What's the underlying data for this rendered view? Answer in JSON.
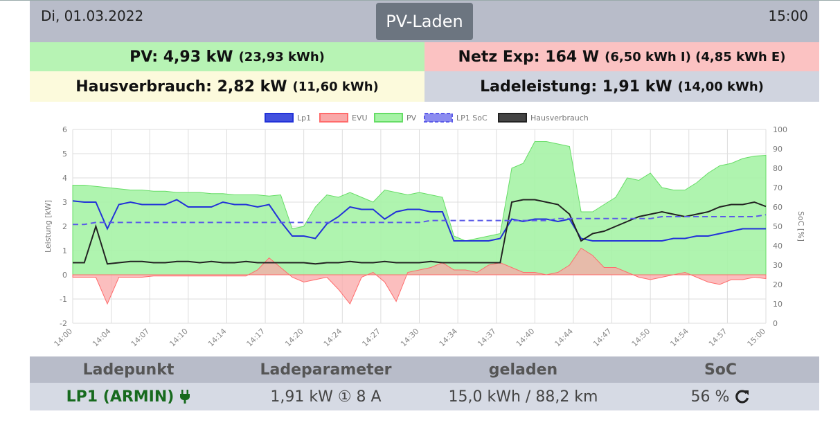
{
  "header": {
    "date": "Di, 01.03.2022",
    "mode_button": "PV-Laden",
    "time": "15:00"
  },
  "summary": {
    "pv": {
      "label": "PV: 4,93 kW",
      "detail": "(23,93 kWh)"
    },
    "netz": {
      "label": "Netz Exp: 164 W",
      "detail": "(6,50 kWh I) (4,85 kWh E)"
    },
    "haus": {
      "label": "Hausverbrauch: 2,82 kW",
      "detail": "(11,60 kWh)"
    },
    "lade": {
      "label": "Ladeleistung: 1,91 kW",
      "detail": "(14,00 kWh)"
    }
  },
  "colors": {
    "lp1": "#2232d8",
    "evu": "#ff6b6b",
    "evu_fill": "#f9a8a8",
    "pv": "#66dd66",
    "pv_fill": "#a6f3a6",
    "soc": "#5a5ae8",
    "haus": "#222222",
    "header_bg": "#b8bcc9",
    "lp_name": "#176a1e"
  },
  "chart_data": {
    "type": "area",
    "title": "",
    "xlabel": "",
    "ylabel": "Leistung [kW]",
    "y2label": "SoC [%]",
    "ylim": [
      -2,
      6
    ],
    "y2lim": [
      0,
      100
    ],
    "yticks": [
      -2,
      -1,
      0,
      1,
      2,
      3,
      4,
      5,
      6
    ],
    "y2ticks": [
      0,
      10,
      20,
      30,
      40,
      50,
      60,
      70,
      80,
      90,
      100
    ],
    "grid": true,
    "legend_position": "top",
    "x_tick_labels": [
      "14:00",
      "14:04",
      "14:07",
      "14:10",
      "14:14",
      "14:17",
      "14:20",
      "14:24",
      "14:27",
      "14:30",
      "14:34",
      "14:37",
      "14:40",
      "14:44",
      "14:47",
      "14:50",
      "14:54",
      "14:57",
      "15:00"
    ],
    "x": [
      "14:00",
      "14:01",
      "14:02",
      "14:03",
      "14:04",
      "14:05",
      "14:06",
      "14:07",
      "14:08",
      "14:09",
      "14:10",
      "14:11",
      "14:12",
      "14:13",
      "14:14",
      "14:15",
      "14:16",
      "14:17",
      "14:18",
      "14:19",
      "14:20",
      "14:21",
      "14:22",
      "14:23",
      "14:24",
      "14:25",
      "14:26",
      "14:27",
      "14:28",
      "14:29",
      "14:30",
      "14:31",
      "14:32",
      "14:33",
      "14:34",
      "14:35",
      "14:36",
      "14:37",
      "14:38",
      "14:39",
      "14:40",
      "14:41",
      "14:42",
      "14:43",
      "14:44",
      "14:45",
      "14:46",
      "14:47",
      "14:48",
      "14:49",
      "14:50",
      "14:51",
      "14:52",
      "14:53",
      "14:54",
      "14:55",
      "14:56",
      "14:57",
      "14:58",
      "14:59",
      "15:00"
    ],
    "series": [
      {
        "name": "Lp1",
        "axis": "left",
        "style": "line",
        "values": [
          3.05,
          3.0,
          3.0,
          1.9,
          2.9,
          3.0,
          2.9,
          2.9,
          2.9,
          3.1,
          2.8,
          2.8,
          2.8,
          3.0,
          2.9,
          2.9,
          2.8,
          2.9,
          2.2,
          1.6,
          1.6,
          1.5,
          2.1,
          2.4,
          2.8,
          2.7,
          2.7,
          2.3,
          2.6,
          2.7,
          2.7,
          2.6,
          2.6,
          1.4,
          1.4,
          1.4,
          1.4,
          1.5,
          2.3,
          2.2,
          2.3,
          2.3,
          2.2,
          2.3,
          1.5,
          1.4,
          1.4,
          1.4,
          1.4,
          1.4,
          1.4,
          1.4,
          1.5,
          1.5,
          1.6,
          1.6,
          1.7,
          1.8,
          1.9,
          1.9,
          1.9
        ]
      },
      {
        "name": "EVU",
        "axis": "left",
        "style": "area",
        "values": [
          -0.1,
          -0.1,
          -0.1,
          -1.2,
          -0.1,
          -0.1,
          -0.1,
          -0.05,
          -0.05,
          -0.05,
          -0.05,
          -0.05,
          -0.05,
          -0.05,
          -0.05,
          -0.05,
          0.2,
          0.7,
          0.3,
          -0.1,
          -0.3,
          -0.2,
          -0.1,
          -0.6,
          -1.2,
          -0.1,
          0.1,
          -0.3,
          -1.1,
          0.1,
          0.2,
          0.3,
          0.5,
          0.2,
          0.2,
          0.1,
          0.4,
          0.5,
          0.3,
          0.1,
          0.1,
          0.0,
          0.1,
          0.4,
          1.1,
          0.8,
          0.3,
          0.3,
          0.1,
          -0.1,
          -0.2,
          -0.1,
          0.0,
          0.1,
          -0.1,
          -0.3,
          -0.4,
          -0.2,
          -0.2,
          -0.1,
          -0.16
        ]
      },
      {
        "name": "PV",
        "axis": "left",
        "style": "area",
        "values": [
          3.7,
          3.7,
          3.65,
          3.6,
          3.55,
          3.5,
          3.5,
          3.45,
          3.45,
          3.4,
          3.4,
          3.4,
          3.35,
          3.35,
          3.3,
          3.3,
          3.3,
          3.25,
          3.3,
          1.9,
          2.0,
          2.8,
          3.3,
          3.2,
          3.4,
          3.2,
          3.0,
          3.5,
          3.4,
          3.3,
          3.4,
          3.3,
          3.2,
          1.6,
          1.4,
          1.5,
          1.6,
          1.7,
          4.4,
          4.6,
          5.5,
          5.5,
          5.4,
          5.3,
          2.6,
          2.6,
          2.9,
          3.2,
          4.0,
          3.9,
          4.2,
          3.6,
          3.5,
          3.5,
          3.8,
          4.2,
          4.5,
          4.6,
          4.8,
          4.9,
          4.93
        ]
      },
      {
        "name": "LP1 SoC",
        "axis": "right",
        "style": "dashed",
        "values": [
          51,
          51,
          52,
          52,
          52,
          52,
          52,
          52,
          52,
          52,
          52,
          52,
          52,
          52,
          52,
          52,
          52,
          52,
          52,
          52,
          52,
          52,
          52,
          52,
          52,
          52,
          52,
          52,
          52,
          52,
          52,
          53,
          53,
          53,
          53,
          53,
          53,
          53,
          53,
          53,
          53,
          53,
          54,
          54,
          54,
          54,
          54,
          54,
          54,
          54,
          54,
          55,
          55,
          55,
          55,
          55,
          55,
          55,
          55,
          55,
          56
        ]
      },
      {
        "name": "Hausverbrauch",
        "axis": "left",
        "style": "line",
        "values": [
          0.5,
          0.5,
          2.0,
          0.45,
          0.5,
          0.55,
          0.55,
          0.5,
          0.5,
          0.55,
          0.55,
          0.5,
          0.55,
          0.5,
          0.5,
          0.55,
          0.5,
          0.5,
          0.5,
          0.5,
          0.5,
          0.45,
          0.5,
          0.5,
          0.55,
          0.5,
          0.5,
          0.55,
          0.5,
          0.5,
          0.5,
          0.55,
          0.5,
          0.5,
          0.5,
          0.5,
          0.5,
          0.5,
          3.0,
          3.1,
          3.1,
          3.0,
          2.9,
          2.5,
          1.4,
          1.7,
          1.8,
          2.0,
          2.2,
          2.4,
          2.5,
          2.6,
          2.5,
          2.4,
          2.5,
          2.6,
          2.8,
          2.9,
          2.9,
          3.0,
          2.82
        ]
      }
    ]
  },
  "ladepunkt_table": {
    "headers": [
      "Ladepunkt",
      "Ladeparameter",
      "geladen",
      "SoC"
    ],
    "row": {
      "name": "LP1 (ARMIN)",
      "params": "1,91 kW ① 8 A",
      "geladen": "15,0 kWh / 88,2 km",
      "soc": "56 %"
    },
    "icons": {
      "plug": "plug-icon",
      "refresh": "refresh-icon"
    }
  }
}
